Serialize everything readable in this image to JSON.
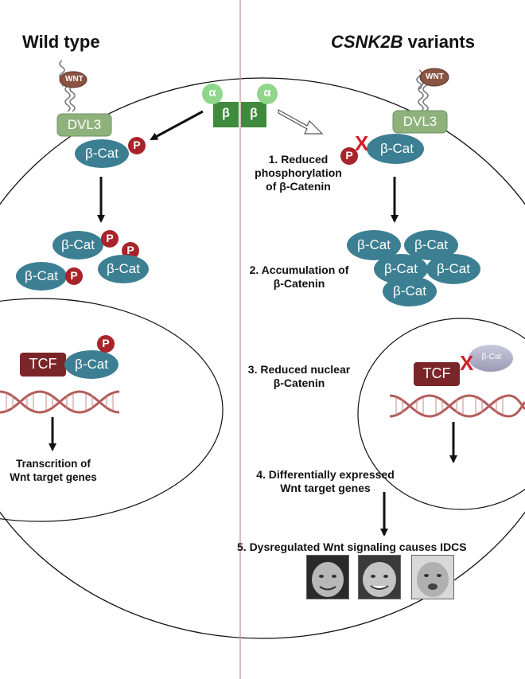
{
  "panels": {
    "left_title": "Wild type",
    "right_title_gene": "CSNK2B",
    "right_title_rest": " variants"
  },
  "labels": {
    "wnt": "WNT",
    "dvl3": "DVL3",
    "bcat": "β-Cat",
    "p": "P",
    "tcf": "TCF",
    "alpha": "α",
    "beta": "β",
    "x_mark": "X"
  },
  "left": {
    "caption_line1": "Transcrition of",
    "caption_line2": "Wnt target genes"
  },
  "steps": {
    "s1_line1": "1. Reduced",
    "s1_line2": "phosphorylation",
    "s1_line3": "of β-Catenin",
    "s2_line1": "2. Accumulation of",
    "s2_line2": "β-Catenin",
    "s3_line1": "3. Reduced nuclear",
    "s3_line2": "β-Catenin",
    "s4_line1": "4. Differentially expressed",
    "s4_line2": "Wnt target genes",
    "s5": "5. Dysregulated Wnt signaling causes IDCS"
  },
  "colors": {
    "bcat": "#3d7f92",
    "phospho": "#a8242a",
    "tcf": "#7a2628",
    "dvl3": "#8fb27d",
    "wnt": "#8a5442",
    "ck2_alpha": "#8fd68a",
    "ck2_beta": "#3f8a3c",
    "divider": "#c9909a"
  }
}
